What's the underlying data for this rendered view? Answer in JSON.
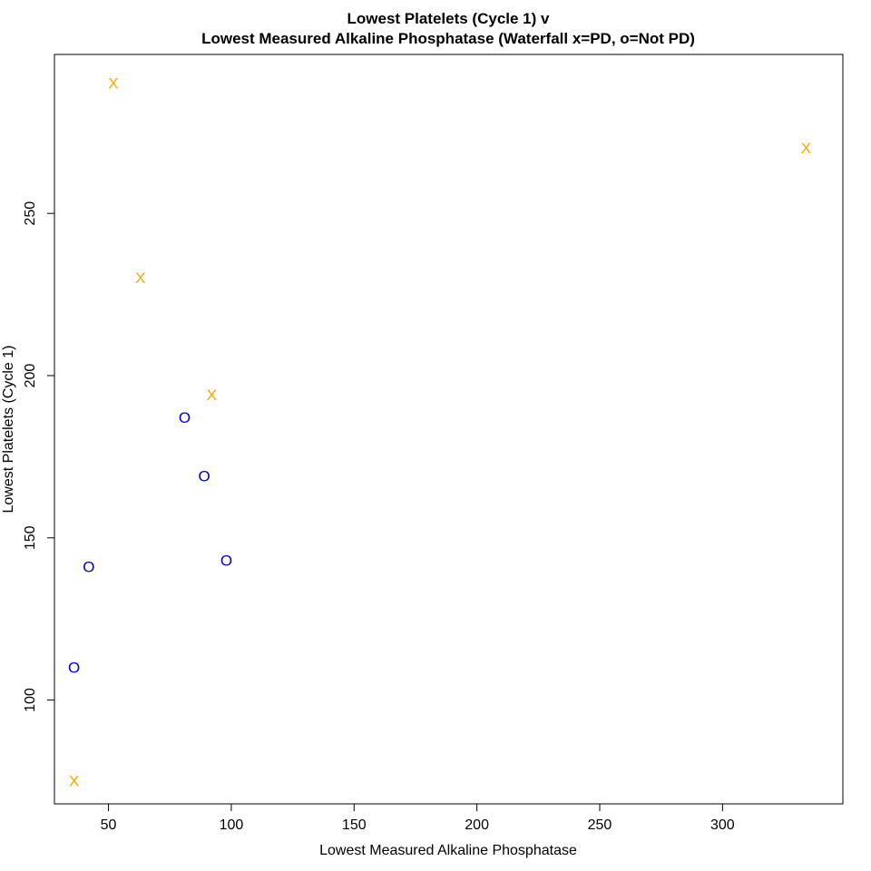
{
  "chart_data": {
    "type": "scatter",
    "title": "Lowest Platelets (Cycle 1) v",
    "subtitle": "Lowest Measured Alkaline Phosphatase (Waterfall x=PD, o=Not PD)",
    "xlabel": "Lowest Measured Alkaline Phosphatase",
    "ylabel": "Lowest Platelets (Cycle 1)",
    "xlim": [
      28,
      349
    ],
    "ylim": [
      68,
      299
    ],
    "x_ticks": [
      50,
      100,
      150,
      200,
      250,
      300
    ],
    "y_ticks": [
      100,
      150,
      200,
      250
    ],
    "grid": false,
    "series": [
      {
        "marker": "X",
        "color": "#FFA500",
        "points": [
          {
            "x": 52,
            "y": 290
          },
          {
            "x": 334,
            "y": 270
          },
          {
            "x": 63,
            "y": 230
          },
          {
            "x": 92,
            "y": 194
          },
          {
            "x": 36,
            "y": 75
          }
        ]
      },
      {
        "marker": "O",
        "color": "#0000CD",
        "points": [
          {
            "x": 81,
            "y": 187
          },
          {
            "x": 89,
            "y": 169
          },
          {
            "x": 98,
            "y": 143
          },
          {
            "x": 42,
            "y": 141
          },
          {
            "x": 36,
            "y": 110
          }
        ]
      }
    ]
  }
}
